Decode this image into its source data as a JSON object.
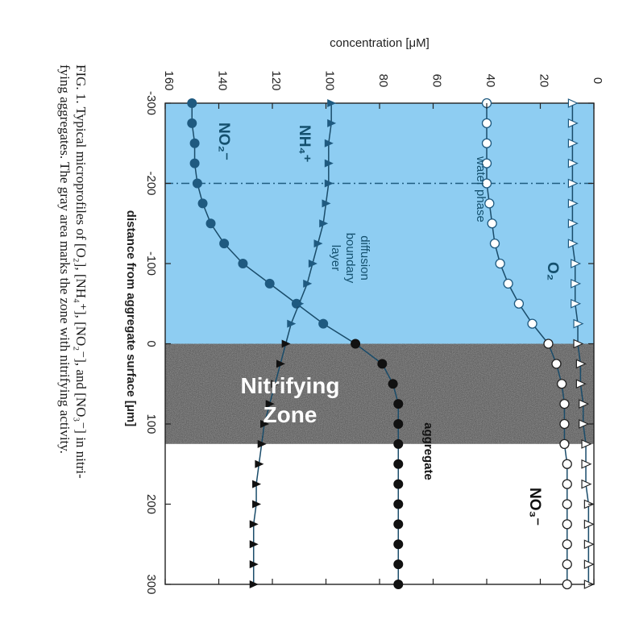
{
  "chart_data": {
    "type": "line",
    "ylabel": "concentration [μM]",
    "xlabel": "distance from aggregate surface [μm]",
    "xlim": [
      -300,
      300
    ],
    "ylim": [
      0,
      160
    ],
    "x_ticks": [
      -300,
      -200,
      -100,
      0,
      100,
      200,
      300
    ],
    "y_ticks": [
      0,
      20,
      40,
      60,
      80,
      100,
      120,
      140,
      160
    ],
    "boundary_x": -200,
    "surface_x": 0,
    "nitrifying_zone_end_x": 125,
    "regions": {
      "water_phase": "water phase",
      "diffusion_boundary_layer": "diffusion\nboundary\nlayer",
      "nitrifying_zone": "Nitrifying\nZone",
      "aggregate": "aggregate"
    },
    "region_colors": {
      "water": "#8ecdf2",
      "nitrifying_zone": "#3c3c3c",
      "aggregate": "#ffffff"
    },
    "series": [
      {
        "name": "O2",
        "label": "O₂",
        "marker": "filled-circle",
        "x": [
          -300,
          -275,
          -250,
          -225,
          -200,
          -175,
          -150,
          -125,
          -100,
          -75,
          -50,
          -25,
          0,
          25,
          50,
          75,
          100,
          125,
          150,
          175,
          200,
          225,
          250,
          275,
          300
        ],
        "y": [
          150,
          150,
          149,
          149,
          148,
          146,
          143,
          138,
          131,
          121,
          111,
          101,
          89,
          79,
          75,
          73,
          73,
          73,
          73,
          73,
          73,
          73,
          73,
          73,
          73
        ]
      },
      {
        "name": "NO3-",
        "label": "NO₃⁻",
        "marker": "filled-triangle",
        "x": [
          -300,
          -275,
          -250,
          -225,
          -200,
          -175,
          -150,
          -125,
          -100,
          -75,
          -50,
          -25,
          0,
          25,
          50,
          75,
          100,
          125,
          150,
          175,
          200,
          225,
          250,
          275,
          300
        ],
        "y": [
          98,
          98,
          99,
          99,
          99,
          100,
          101,
          103,
          105,
          107,
          110,
          113,
          115,
          117,
          119,
          121,
          123,
          124,
          125,
          126,
          126,
          127,
          127,
          127,
          127
        ]
      },
      {
        "name": "NH4+",
        "label": "NH₄⁺",
        "marker": "open-circle",
        "x": [
          -300,
          -275,
          -250,
          -225,
          -200,
          -175,
          -150,
          -125,
          -100,
          -75,
          -50,
          -25,
          0,
          25,
          50,
          75,
          100,
          125,
          150,
          175,
          200,
          225,
          250,
          275,
          300
        ],
        "y": [
          40,
          40,
          40,
          40,
          40,
          39,
          38,
          37,
          35,
          32,
          28,
          23,
          17,
          14,
          12,
          11,
          11,
          11,
          10,
          10,
          10,
          10,
          10,
          10,
          10
        ]
      },
      {
        "name": "NO2-",
        "label": "NO₂⁻",
        "marker": "open-triangle",
        "x": [
          -300,
          -275,
          -250,
          -225,
          -200,
          -175,
          -150,
          -125,
          -100,
          -75,
          -50,
          -25,
          0,
          25,
          50,
          75,
          100,
          125,
          150,
          175,
          200,
          225,
          250,
          275,
          300
        ],
        "y": [
          8,
          8,
          8,
          8,
          8,
          8,
          8,
          8,
          7,
          7,
          7,
          6,
          6,
          5,
          5,
          4,
          4,
          3,
          3,
          3,
          2,
          2,
          2,
          2,
          2
        ]
      }
    ],
    "caption_line1": "FIG. 1. Typical microprofiles of [O₂], [NH₄⁺], [NO₂⁻], and [NO₃⁻] in nitri-",
    "caption_line2": "fying aggregates. The gray area marks the zone with nitrifying activity."
  }
}
